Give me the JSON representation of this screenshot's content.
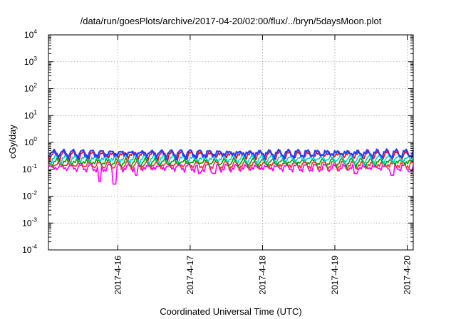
{
  "chart_data": {
    "type": "line",
    "title": "/data/run/goesPlots/archive/2017-04-20/02:00/flux/../bryn/5daysMoon.plot",
    "xlabel": "Coordinated Universal Time (UTC)",
    "ylabel": "cGy/day",
    "yscale": "log",
    "ylim": [
      0.0001,
      10000
    ],
    "xlim": [
      "2017-04-15 01:00",
      "2017-04-20 02:00"
    ],
    "grid": true,
    "y_ticks": [
      {
        "value": 0.0001,
        "base": "10",
        "exp": "-4"
      },
      {
        "value": 0.001,
        "base": "10",
        "exp": "-3"
      },
      {
        "value": 0.01,
        "base": "10",
        "exp": "-2"
      },
      {
        "value": 0.1,
        "base": "10",
        "exp": "-1"
      },
      {
        "value": 1,
        "base": "10",
        "exp": "0"
      },
      {
        "value": 10,
        "base": "10",
        "exp": "1"
      },
      {
        "value": 100,
        "base": "10",
        "exp": "2"
      },
      {
        "value": 1000,
        "base": "10",
        "exp": "3"
      },
      {
        "value": 10000,
        "base": "10",
        "exp": "4"
      }
    ],
    "x_ticks": [
      {
        "value": "2017-04-16 00:00",
        "label": "2017-4-16"
      },
      {
        "value": "2017-04-17 00:00",
        "label": "2017-4-17"
      },
      {
        "value": "2017-04-18 00:00",
        "label": "2017-4-18"
      },
      {
        "value": "2017-04-19 00:00",
        "label": "2017-4-19"
      },
      {
        "value": "2017-04-20 00:00",
        "label": "2017-4-20"
      }
    ],
    "series": [
      {
        "color": "#ff00ff",
        "base": 0.12,
        "dips": [
          [
            "2017-04-15 18:00",
            0.035
          ],
          [
            "2017-04-15 23:00",
            0.028
          ],
          [
            "2017-04-16 06:00",
            0.06
          ],
          [
            "2017-04-17 03:00",
            0.07
          ],
          [
            "2017-04-17 08:00",
            0.07
          ],
          [
            "2017-04-19 07:00",
            0.07
          ],
          [
            "2017-04-19 19:00",
            0.06
          ],
          [
            "2017-04-20 01:00",
            0.08
          ]
        ]
      },
      {
        "color": "#ff3030",
        "base": 0.15
      },
      {
        "color": "#00a000",
        "base": 0.19
      },
      {
        "color": "#00d0d0",
        "base": 0.25
      },
      {
        "color": "#ff0000",
        "base": 0.36
      },
      {
        "color": "#2040ff",
        "base": 0.4
      }
    ]
  }
}
